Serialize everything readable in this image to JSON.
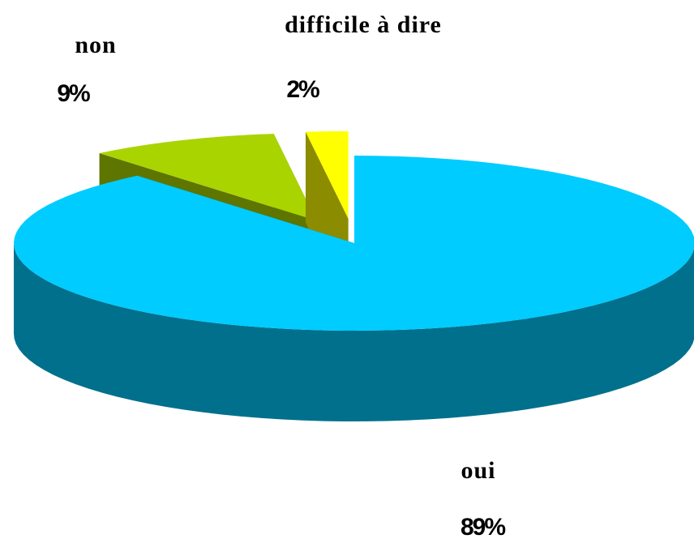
{
  "chart_data": {
    "type": "pie",
    "categories": [
      "oui",
      "non",
      "difficile à dire"
    ],
    "values": [
      89,
      9,
      2
    ],
    "value_labels": [
      "89%",
      "9%",
      "2%"
    ],
    "colors": [
      "#00ccff",
      "#aad400",
      "#ffff00"
    ]
  }
}
